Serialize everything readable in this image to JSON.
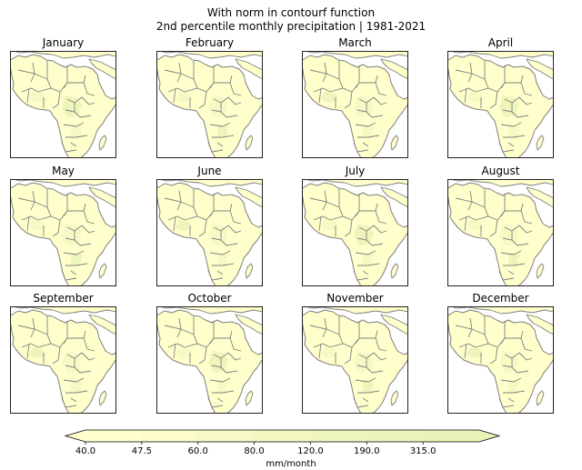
{
  "title_line1": "With norm in contourf function",
  "title_line2": "2nd percentile monthly precipitation | 1981-2021",
  "chart_data": {
    "type": "heatmap",
    "panels": [
      "January",
      "February",
      "March",
      "April",
      "May",
      "June",
      "July",
      "August",
      "September",
      "October",
      "November",
      "December"
    ],
    "colorbar": {
      "label": "mm/month",
      "ticks": [
        "40.0",
        "47.5",
        "60.0",
        "80.0",
        "120.0",
        "190.0",
        "315.0"
      ],
      "extend": "both",
      "colors": [
        "#ffffcc",
        "#fbfcc8",
        "#f7fac5",
        "#f3f8c1",
        "#eff6bd",
        "#ebf4b9",
        "#e7f2b6"
      ]
    },
    "fill_colors": {
      "base": "#ffffcc",
      "slightly_wetter": "#f5f9c3",
      "wetter": "#eef5bb"
    },
    "border_color": "#7f7f7f"
  }
}
